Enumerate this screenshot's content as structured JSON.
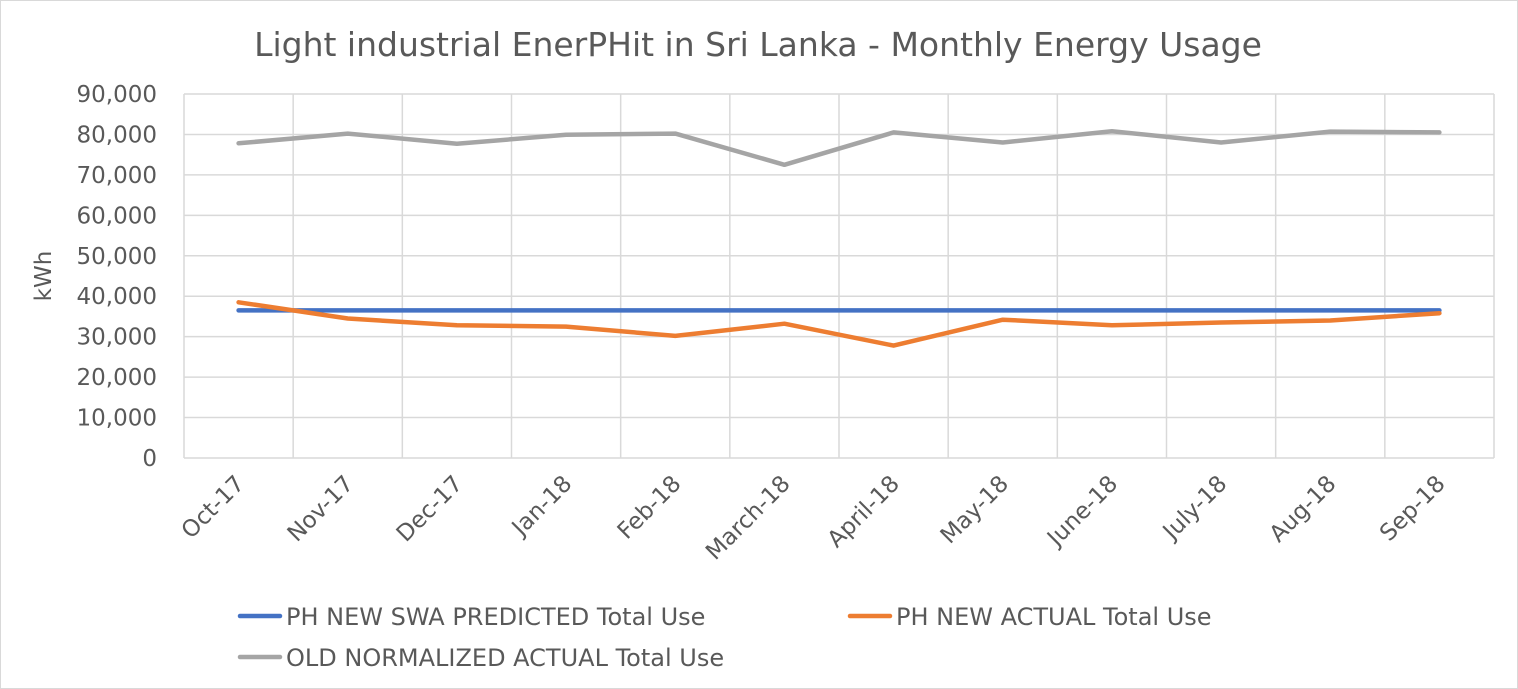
{
  "chart_data": {
    "type": "line",
    "title": "Light industrial EnerPHit in Sri Lanka - Monthly Energy Usage",
    "xlabel": "",
    "ylabel": "kWh",
    "ylim": [
      0,
      90000
    ],
    "yticks": [
      "0",
      "10,000",
      "20,000",
      "30,000",
      "40,000",
      "50,000",
      "60,000",
      "70,000",
      "80,000",
      "90,000"
    ],
    "categories": [
      "Oct-17",
      "Nov-17",
      "Dec-17",
      "Jan-18",
      "Feb-18",
      "March-18",
      "April-18",
      "May-18",
      "June-18",
      "July-18",
      "Aug-18",
      "Sep-18"
    ],
    "grid": true,
    "legend_position": "bottom",
    "series": [
      {
        "name": "PH NEW SWA PREDICTED Total Use",
        "color": "#4472c4",
        "values": [
          36500,
          36500,
          36500,
          36500,
          36500,
          36500,
          36500,
          36500,
          36500,
          36500,
          36500,
          36500
        ]
      },
      {
        "name": "PH NEW ACTUAL Total Use",
        "color": "#ed7d31",
        "values": [
          38500,
          34500,
          32800,
          32500,
          30200,
          33200,
          27800,
          34200,
          32800,
          33500,
          34000,
          35800
        ]
      },
      {
        "name": "OLD NORMALIZED ACTUAL Total Use",
        "color": "#a5a5a5",
        "values": [
          77800,
          80200,
          77700,
          79900,
          80200,
          72500,
          80500,
          78000,
          80800,
          78000,
          80700,
          80500
        ]
      }
    ]
  }
}
